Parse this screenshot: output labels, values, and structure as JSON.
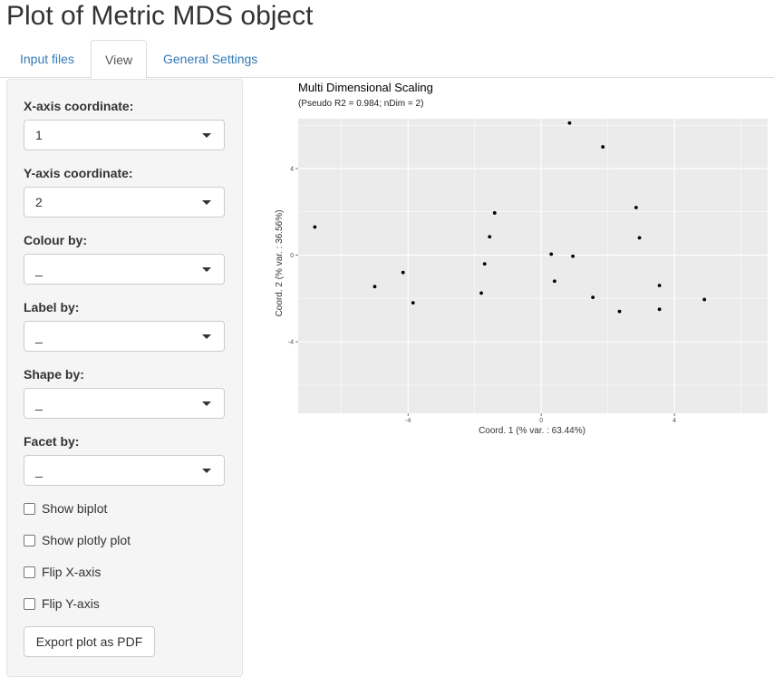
{
  "page": {
    "title": "Plot of Metric MDS object"
  },
  "tabs": [
    {
      "label": "Input files",
      "active": false
    },
    {
      "label": "View",
      "active": true
    },
    {
      "label": "General Settings",
      "active": false
    }
  ],
  "sidebar": {
    "x_axis": {
      "label": "X-axis coordinate:",
      "value": "1"
    },
    "y_axis": {
      "label": "Y-axis coordinate:",
      "value": "2"
    },
    "colour_by": {
      "label": "Colour by:",
      "value": "_"
    },
    "label_by": {
      "label": "Label by:",
      "value": "_"
    },
    "shape_by": {
      "label": "Shape by:",
      "value": "_"
    },
    "facet_by": {
      "label": "Facet by:",
      "value": "_"
    },
    "checkboxes": [
      {
        "label": "Show biplot",
        "checked": false
      },
      {
        "label": "Show plotly plot",
        "checked": false
      },
      {
        "label": "Flip X-axis",
        "checked": false
      },
      {
        "label": "Flip Y-axis",
        "checked": false
      }
    ],
    "export_label": "Export plot as PDF"
  },
  "colors": {
    "link": "#337ab7",
    "panel_bg": "#ebebeb",
    "grid": "#ffffff",
    "point": "#000000"
  },
  "chart_data": {
    "type": "scatter",
    "title": "Multi Dimensional Scaling",
    "subtitle": "(Pseudo R2 = 0.984; nDim = 2)",
    "xlabel": "Coord. 1 (% var. : 63.44%)",
    "ylabel": "Coord. 2 (% var. : 36.56%)",
    "xlim": [
      -7.3,
      6.8
    ],
    "ylim": [
      -7.3,
      6.3
    ],
    "x_ticks": [
      -4,
      0,
      4
    ],
    "x_tick_labels": [
      "-4",
      "0",
      "4"
    ],
    "y_ticks": [
      -4,
      0,
      4
    ],
    "y_tick_labels": [
      "-4",
      "0",
      "4"
    ],
    "grid": true,
    "points": [
      {
        "x": -6.8,
        "y": 1.3
      },
      {
        "x": -5.0,
        "y": -1.45
      },
      {
        "x": -4.15,
        "y": -0.8
      },
      {
        "x": -3.85,
        "y": -2.2
      },
      {
        "x": -1.8,
        "y": -1.75
      },
      {
        "x": -1.7,
        "y": -0.4
      },
      {
        "x": -1.55,
        "y": 0.85
      },
      {
        "x": -1.4,
        "y": 1.95
      },
      {
        "x": 0.3,
        "y": 0.05
      },
      {
        "x": 0.4,
        "y": -1.2
      },
      {
        "x": 0.85,
        "y": 6.1
      },
      {
        "x": 0.95,
        "y": -0.05
      },
      {
        "x": 1.55,
        "y": -1.95
      },
      {
        "x": 1.85,
        "y": 5.0
      },
      {
        "x": 2.35,
        "y": -2.6
      },
      {
        "x": 2.85,
        "y": 2.2
      },
      {
        "x": 2.95,
        "y": 0.8
      },
      {
        "x": 3.55,
        "y": -1.4
      },
      {
        "x": 3.55,
        "y": -2.5
      },
      {
        "x": 4.9,
        "y": -2.05
      }
    ]
  }
}
